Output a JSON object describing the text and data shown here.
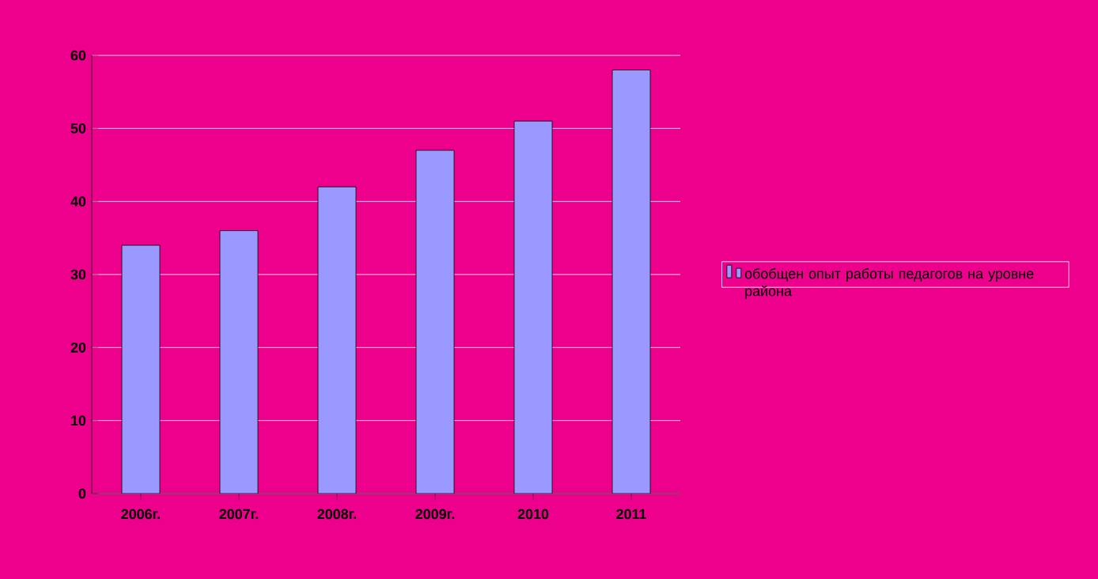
{
  "chart_data": {
    "type": "bar",
    "categories": [
      "2006г.",
      "2007г.",
      "2008г.",
      "2009г.",
      "2010",
      "2011"
    ],
    "series": [
      {
        "name": "обобщен опыт работы педагогов на уровне района",
        "color": "#9999ff",
        "values": [
          34,
          36,
          42,
          47,
          51,
          58
        ]
      }
    ],
    "ylim": [
      0,
      60
    ],
    "yticks": [
      0,
      10,
      20,
      30,
      40,
      50,
      60
    ],
    "grid": "y",
    "legend": "right"
  }
}
